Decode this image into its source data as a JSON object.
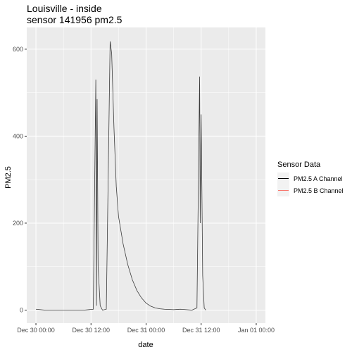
{
  "chart_data": {
    "type": "line",
    "title": "Louisville - inside",
    "subtitle": "sensor 141956 pm2.5",
    "xlabel": "date",
    "ylabel": "PM2.5",
    "x_ticks": [
      "2021-12-30T00:00",
      "2021-12-30T12:00",
      "2021-12-31T00:00",
      "2021-12-31T12:00",
      "2022-01-01T00:00"
    ],
    "x_tick_labels": [
      "Dec 30 00:00",
      "Dec 30 12:00",
      "Dec 31 00:00",
      "Dec 31 12:00",
      "Jan 01 00:00"
    ],
    "xlim": [
      "2021-12-29T22:00",
      "2022-01-01T02:00"
    ],
    "y_ticks": [
      0,
      200,
      400,
      600
    ],
    "y_tick_labels": [
      "0",
      "200",
      "400",
      "600"
    ],
    "ylim": [
      -30,
      650
    ],
    "grid": true,
    "legend": {
      "title": "Sensor Data",
      "position": "right"
    },
    "series": [
      {
        "name": "PM2.5 A Channel",
        "color": "#000000",
        "points": [
          [
            "2021-12-30T00:00",
            2
          ],
          [
            "2021-12-30T01:00",
            1
          ],
          [
            "2021-12-30T02:00",
            0
          ],
          [
            "2021-12-30T04:00",
            0
          ],
          [
            "2021-12-30T06:00",
            0
          ],
          [
            "2021-12-30T08:00",
            0
          ],
          [
            "2021-12-30T10:30",
            0
          ],
          [
            "2021-12-30T12:30",
            2
          ],
          [
            "2021-12-30T13:03",
            530
          ],
          [
            "2021-12-30T13:12",
            10
          ],
          [
            "2021-12-30T13:20",
            485
          ],
          [
            "2021-12-30T13:33",
            100
          ],
          [
            "2021-12-30T14:00",
            10
          ],
          [
            "2021-12-30T14:30",
            0
          ],
          [
            "2021-12-30T15:20",
            2
          ],
          [
            "2021-12-30T16:10",
            618
          ],
          [
            "2021-12-30T16:30",
            590
          ],
          [
            "2021-12-30T17:00",
            420
          ],
          [
            "2021-12-30T17:30",
            285
          ],
          [
            "2021-12-30T18:00",
            215
          ],
          [
            "2021-12-30T19:00",
            152
          ],
          [
            "2021-12-30T20:00",
            105
          ],
          [
            "2021-12-30T21:00",
            70
          ],
          [
            "2021-12-30T22:00",
            45
          ],
          [
            "2021-12-30T23:00",
            28
          ],
          [
            "2021-12-31T00:00",
            16
          ],
          [
            "2021-12-31T01:00",
            9
          ],
          [
            "2021-12-31T02:00",
            5
          ],
          [
            "2021-12-31T03:00",
            3
          ],
          [
            "2021-12-31T04:00",
            2
          ],
          [
            "2021-12-31T06:00",
            1
          ],
          [
            "2021-12-31T07:30",
            2
          ],
          [
            "2021-12-31T10:00",
            0
          ],
          [
            "2021-12-31T11:05",
            5
          ],
          [
            "2021-12-31T11:40",
            537
          ],
          [
            "2021-12-31T11:48",
            200
          ],
          [
            "2021-12-31T12:00",
            450
          ],
          [
            "2021-12-31T12:20",
            80
          ],
          [
            "2021-12-31T12:40",
            5
          ],
          [
            "2021-12-31T13:00",
            0
          ]
        ]
      },
      {
        "name": "PM2.5 B Channel",
        "color": "#f8766d",
        "points": []
      }
    ]
  }
}
